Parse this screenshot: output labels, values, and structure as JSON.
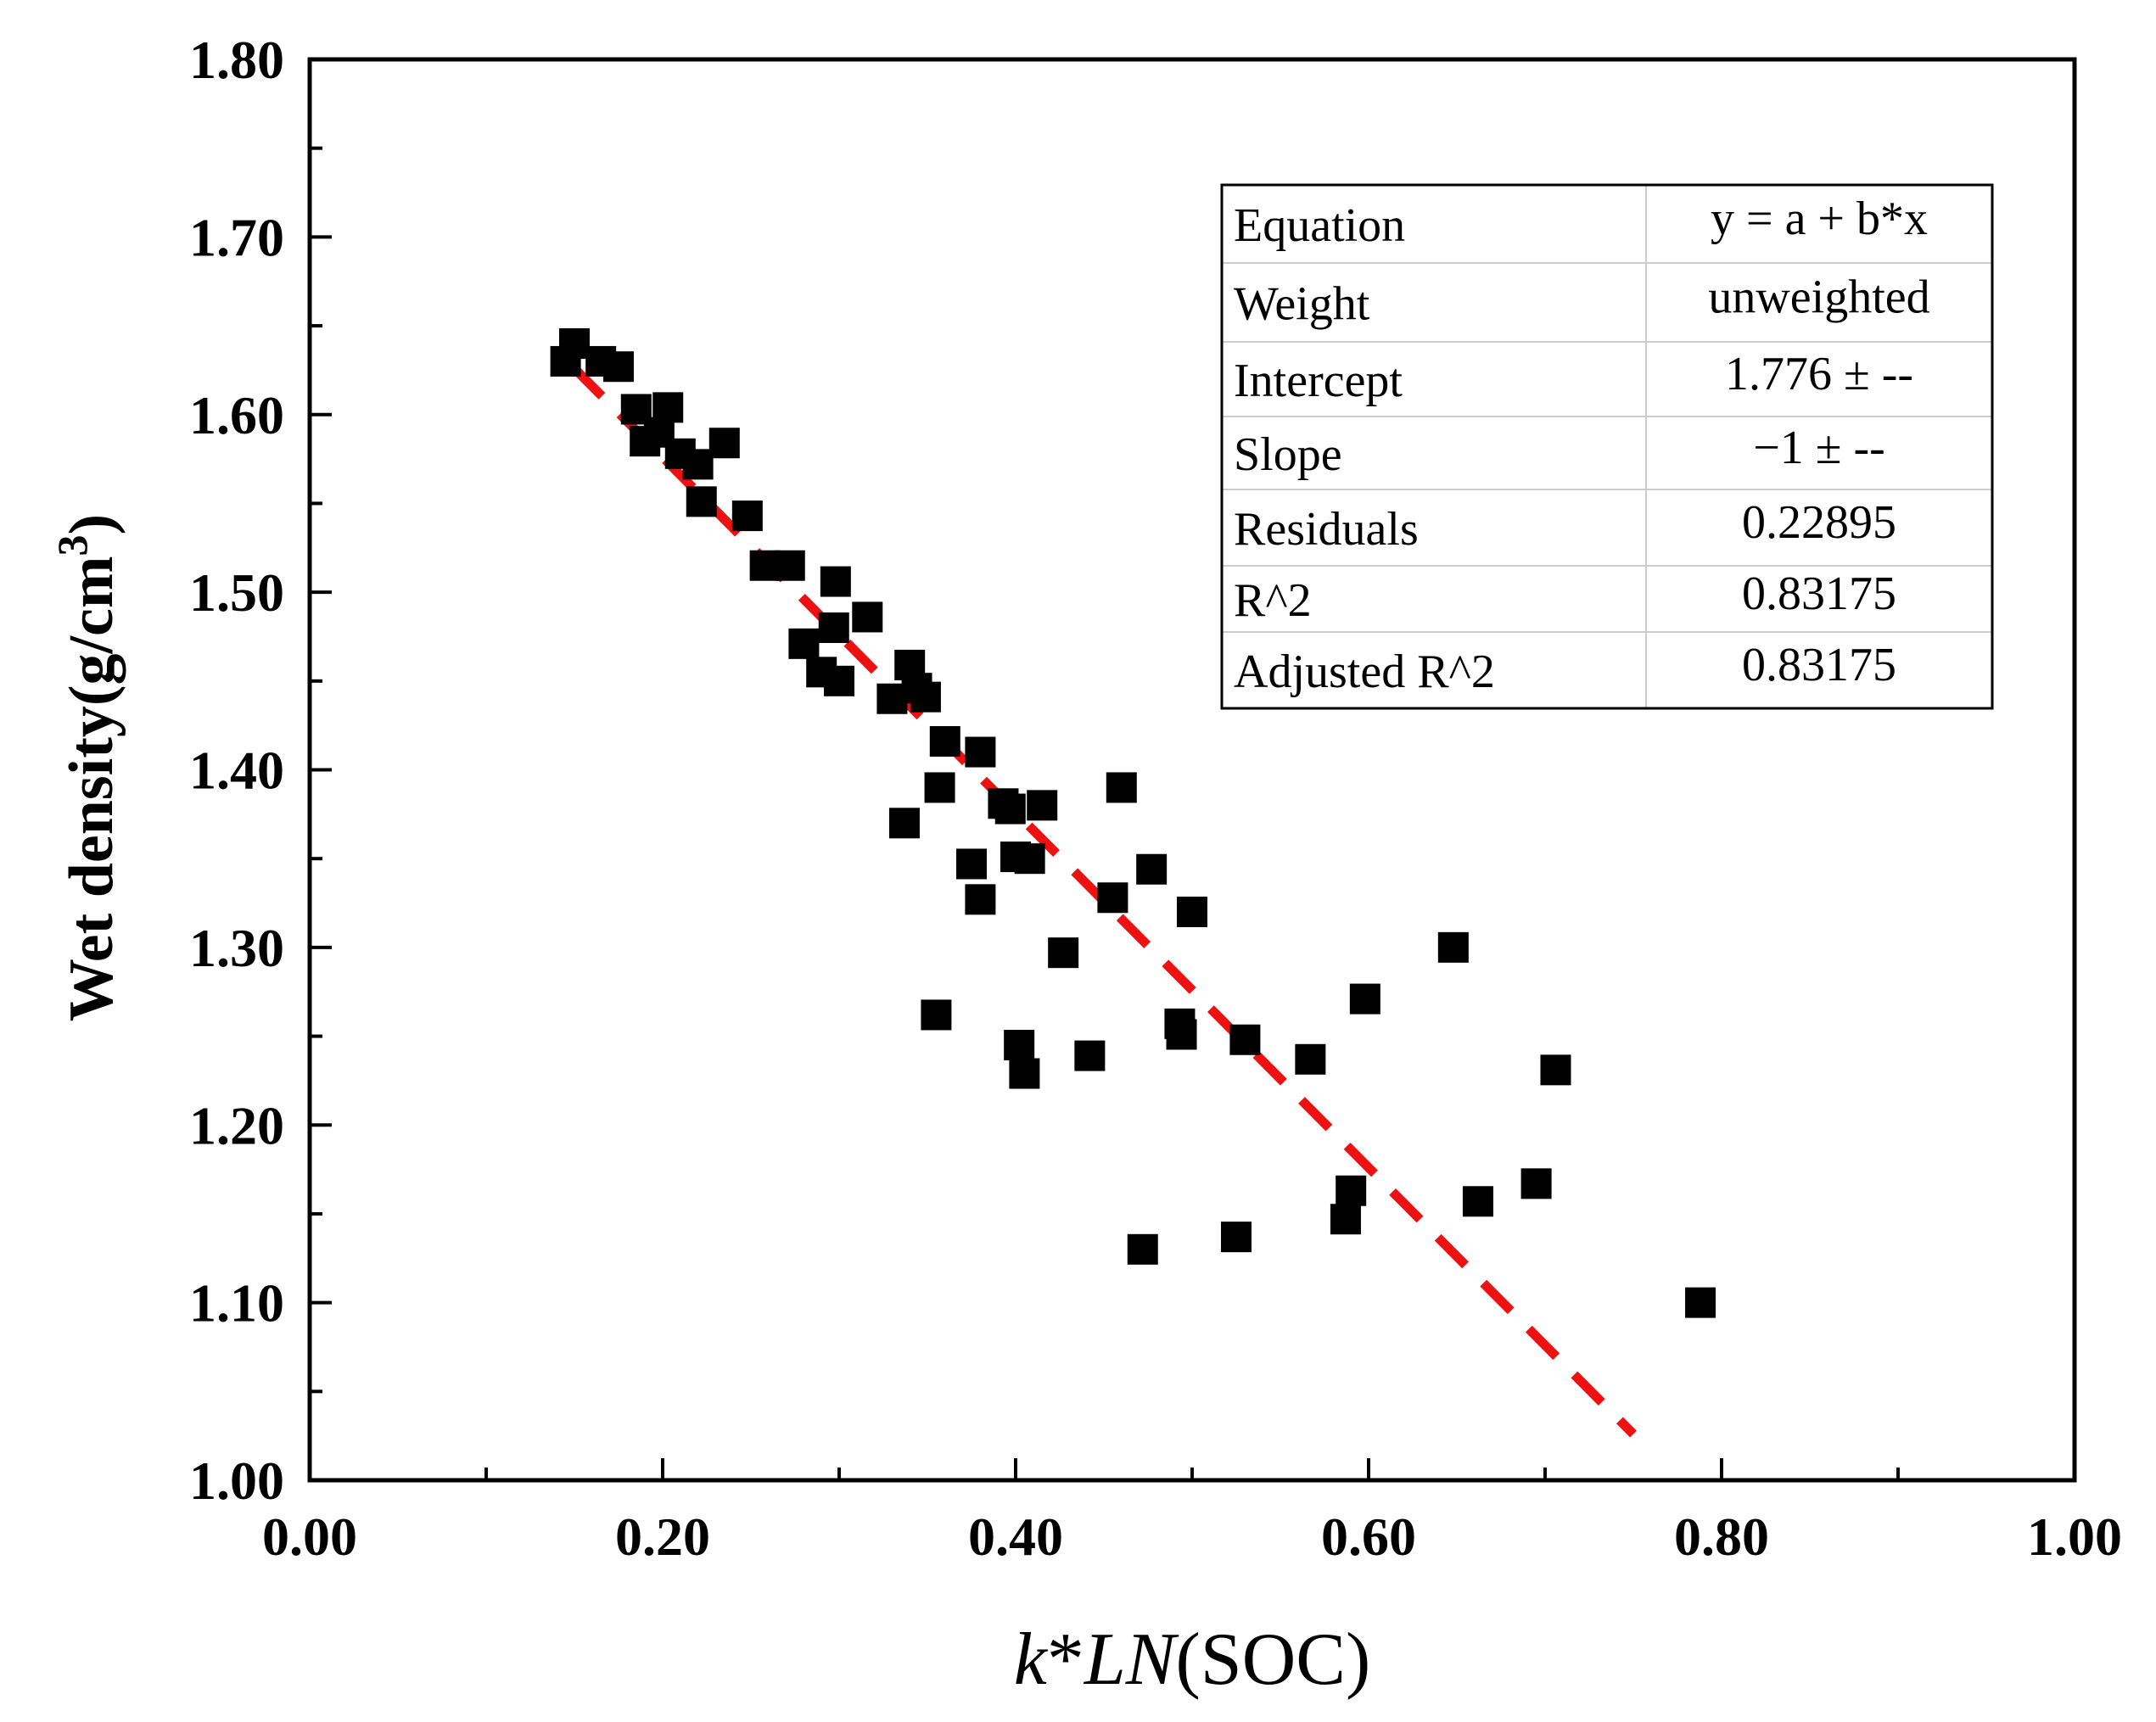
{
  "chart_data": {
    "type": "scatter",
    "title": "",
    "xlabel_parts": [
      "k",
      "*",
      "LN",
      "(SOC)"
    ],
    "ylabel_text": "Wet density(g/cm",
    "ylabel_sup": "3",
    "ylabel_close": ")",
    "xlim": [
      0,
      1
    ],
    "ylim": [
      1.0,
      1.8
    ],
    "xticks": [
      {
        "value": 0.0,
        "label": "0.00"
      },
      {
        "value": 0.2,
        "label": "0.20"
      },
      {
        "value": 0.4,
        "label": "0.40"
      },
      {
        "value": 0.6,
        "label": "0.60"
      },
      {
        "value": 0.8,
        "label": "0.80"
      },
      {
        "value": 1.0,
        "label": "1.00"
      }
    ],
    "yticks": [
      {
        "value": 1.0,
        "label": "1.00"
      },
      {
        "value": 1.1,
        "label": "1.10"
      },
      {
        "value": 1.2,
        "label": "1.20"
      },
      {
        "value": 1.3,
        "label": "1.30"
      },
      {
        "value": 1.4,
        "label": "1.40"
      },
      {
        "value": 1.5,
        "label": "1.50"
      },
      {
        "value": 1.6,
        "label": "1.60"
      },
      {
        "value": 1.7,
        "label": "1.70"
      },
      {
        "value": 1.8,
        "label": "1.80"
      }
    ],
    "series": [
      {
        "name": "data",
        "color": "#000000",
        "marker": "square",
        "points": [
          [
            0.145,
            1.63
          ],
          [
            0.15,
            1.64
          ],
          [
            0.165,
            1.63
          ],
          [
            0.175,
            1.627
          ],
          [
            0.185,
            1.603
          ],
          [
            0.19,
            1.585
          ],
          [
            0.198,
            1.59
          ],
          [
            0.203,
            1.604
          ],
          [
            0.21,
            1.578
          ],
          [
            0.22,
            1.572
          ],
          [
            0.222,
            1.551
          ],
          [
            0.235,
            1.584
          ],
          [
            0.248,
            1.543
          ],
          [
            0.258,
            1.515
          ],
          [
            0.272,
            1.515
          ],
          [
            0.28,
            1.471
          ],
          [
            0.29,
            1.455
          ],
          [
            0.297,
            1.48
          ],
          [
            0.298,
            1.506
          ],
          [
            0.3,
            1.45
          ],
          [
            0.316,
            1.486
          ],
          [
            0.33,
            1.44
          ],
          [
            0.337,
            1.37
          ],
          [
            0.34,
            1.459
          ],
          [
            0.344,
            1.446
          ],
          [
            0.349,
            1.441
          ],
          [
            0.355,
            1.262
          ],
          [
            0.357,
            1.39
          ],
          [
            0.36,
            1.416
          ],
          [
            0.375,
            1.347
          ],
          [
            0.38,
            1.41
          ],
          [
            0.38,
            1.327
          ],
          [
            0.393,
            1.381
          ],
          [
            0.397,
            1.378
          ],
          [
            0.4,
            1.351
          ],
          [
            0.402,
            1.245
          ],
          [
            0.405,
            1.229
          ],
          [
            0.408,
            1.35
          ],
          [
            0.415,
            1.38
          ],
          [
            0.427,
            1.297
          ],
          [
            0.442,
            1.239
          ],
          [
            0.455,
            1.328
          ],
          [
            0.46,
            1.39
          ],
          [
            0.472,
            1.13
          ],
          [
            0.477,
            1.344
          ],
          [
            0.493,
            1.257
          ],
          [
            0.494,
            1.251
          ],
          [
            0.5,
            1.32
          ],
          [
            0.525,
            1.137
          ],
          [
            0.53,
            1.248
          ],
          [
            0.567,
            1.237
          ],
          [
            0.587,
            1.147
          ],
          [
            0.59,
            1.163
          ],
          [
            0.598,
            1.271
          ],
          [
            0.648,
            1.3
          ],
          [
            0.662,
            1.157
          ],
          [
            0.695,
            1.167
          ],
          [
            0.706,
            1.231
          ],
          [
            0.788,
            1.1
          ]
        ]
      }
    ],
    "fit": {
      "name": "linear fit",
      "color": "#ee1111",
      "style": "dashed",
      "intercept": 1.776,
      "slope": -1,
      "x_range": [
        0.15,
        0.75
      ]
    },
    "stats_table": {
      "position": "top-right",
      "rows": [
        {
          "label": "Equation",
          "value": "y = a + b*x"
        },
        {
          "label": "Weight",
          "value": "unweighted"
        },
        {
          "label": "Intercept",
          "value": "1.776 ± --"
        },
        {
          "label": "Slope",
          "value": "−1 ± --"
        },
        {
          "label": "Residuals",
          "value": "0.22895"
        },
        {
          "label": "R^2",
          "value": "0.83175"
        },
        {
          "label": "Adjusted R^2",
          "value": "0.83175"
        }
      ]
    }
  }
}
